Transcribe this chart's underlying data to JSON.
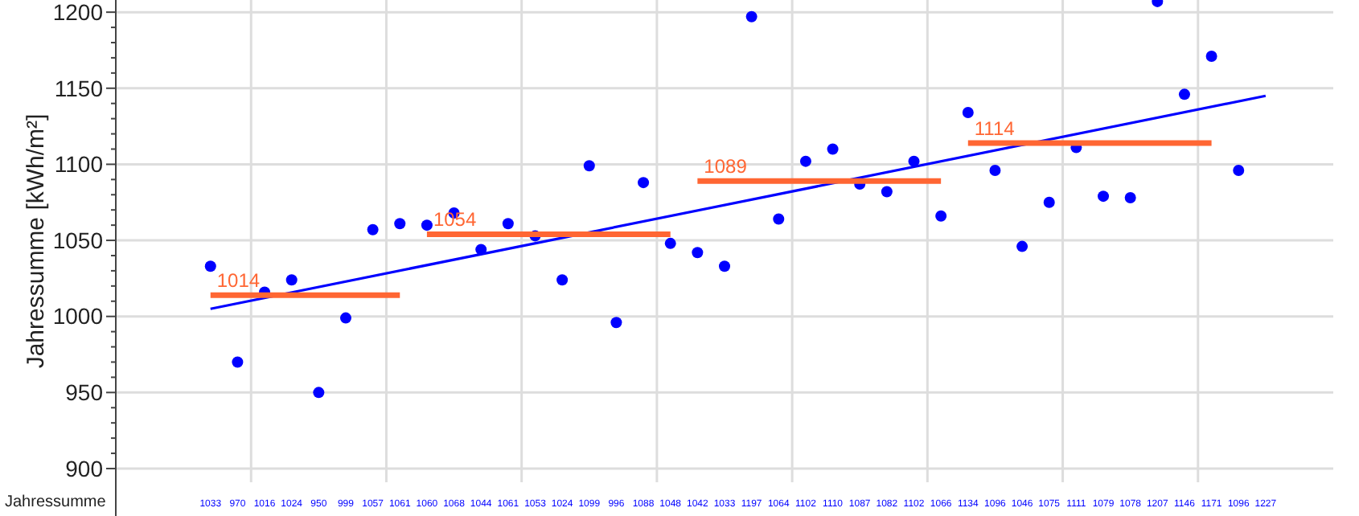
{
  "chart_data": {
    "type": "scatter",
    "ylabel": "Jahressumme [kWh/m²]",
    "categories": [
      null,
      null,
      null,
      null,
      null,
      null,
      null,
      null,
      null,
      null,
      null,
      null,
      null,
      null,
      null,
      null,
      null,
      null,
      null,
      null,
      null,
      null,
      null,
      null,
      null,
      null,
      null,
      null,
      null,
      null,
      null,
      null,
      null,
      null,
      null,
      null,
      null,
      null,
      null,
      null,
      null,
      null,
      null,
      null,
      null
    ],
    "series": [
      {
        "color": "#0000ff",
        "marker": "circle",
        "values": [
          null,
          null,
          null,
          1033,
          970,
          1016,
          1024,
          950,
          999,
          1057,
          1061,
          1060,
          1068,
          1044,
          1061,
          1053,
          1024,
          1099,
          996,
          1088,
          1048,
          1042,
          1033,
          1197,
          1064,
          1102,
          1110,
          1087,
          1082,
          1102,
          1066,
          1134,
          1096,
          1046,
          1075,
          1111,
          1079,
          1078,
          1207,
          1146,
          1171,
          1096,
          null,
          null,
          null
        ],
        "value_labels": [
          null,
          null,
          null,
          "1033",
          "970",
          "1016",
          "1024",
          "950",
          "999",
          "1057",
          "1061",
          "1060",
          "1068",
          "1044",
          "1061",
          "1053",
          "1024",
          "1099",
          "996",
          "1088",
          "1048",
          "1042",
          "1033",
          "1197",
          "1064",
          "1102",
          "1110",
          "1087",
          "1082",
          "1102",
          "1066",
          "1134",
          "1096",
          "1046",
          "1075",
          "1111",
          "1079",
          "1078",
          "1207",
          "1146",
          "1171",
          "1096",
          "1227",
          null,
          null
        ]
      },
      {
        "type": "line",
        "color": "#0000ff",
        "values": [
          null,
          null,
          null,
          1005,
          null,
          null,
          null,
          null,
          null,
          null,
          null,
          null,
          null,
          null,
          null,
          null,
          null,
          null,
          null,
          null,
          null,
          null,
          null,
          null,
          null,
          null,
          null,
          null,
          null,
          null,
          null,
          null,
          null,
          null,
          null,
          null,
          null,
          null,
          null,
          null,
          null,
          null,
          1145,
          null,
          null
        ]
      },
      {
        "type": "line",
        "color": "#ff6633",
        "values": [
          null,
          null,
          null,
          1014,
          null,
          null,
          null,
          null,
          null,
          null,
          1014,
          null,
          null,
          null,
          null,
          null,
          null,
          null,
          null,
          null,
          null,
          null,
          null,
          null,
          null,
          null,
          null,
          null,
          null,
          null,
          null,
          null,
          null,
          null,
          null,
          null,
          null,
          null,
          null,
          null,
          null,
          null,
          null,
          null,
          null
        ],
        "value_labels": [
          null,
          null,
          null,
          "1014",
          null,
          null,
          null,
          null,
          null,
          null,
          null,
          null,
          null,
          null,
          null,
          null,
          null,
          null,
          null,
          null,
          null,
          null,
          null,
          null,
          null,
          null,
          null,
          null,
          null,
          null,
          null,
          null,
          null,
          null,
          null,
          null,
          null,
          null,
          null,
          null,
          null,
          null,
          null,
          null,
          null
        ]
      },
      {
        "type": "line",
        "color": "#ff6633",
        "values": [
          null,
          null,
          null,
          null,
          null,
          null,
          null,
          null,
          null,
          null,
          null,
          1054,
          null,
          null,
          null,
          null,
          null,
          null,
          null,
          null,
          1054,
          null,
          null,
          null,
          null,
          null,
          null,
          null,
          null,
          null,
          null,
          null,
          null,
          null,
          null,
          null,
          null,
          null,
          null,
          null,
          null,
          null,
          null,
          null,
          null
        ],
        "value_labels": [
          null,
          null,
          null,
          null,
          null,
          null,
          null,
          null,
          null,
          null,
          null,
          "1054",
          null,
          null,
          null,
          null,
          null,
          null,
          null,
          null,
          null,
          null,
          null,
          null,
          null,
          null,
          null,
          null,
          null,
          null,
          null,
          null,
          null,
          null,
          null,
          null,
          null,
          null,
          null,
          null,
          null,
          null,
          null,
          null,
          null
        ]
      },
      {
        "type": "line",
        "color": "#ff6633",
        "values": [
          null,
          null,
          null,
          null,
          null,
          null,
          null,
          null,
          null,
          null,
          null,
          null,
          null,
          null,
          null,
          null,
          null,
          null,
          null,
          null,
          null,
          1089,
          null,
          null,
          null,
          null,
          null,
          null,
          null,
          null,
          1089,
          null,
          null,
          null,
          null,
          null,
          null,
          null,
          null,
          null,
          null,
          null,
          null,
          null,
          null
        ],
        "value_labels": [
          null,
          null,
          null,
          null,
          null,
          null,
          null,
          null,
          null,
          null,
          null,
          null,
          null,
          null,
          null,
          null,
          null,
          null,
          null,
          null,
          null,
          "1089",
          null,
          null,
          null,
          null,
          null,
          null,
          null,
          null,
          null,
          null,
          null,
          null,
          null,
          null,
          null,
          null,
          null,
          null,
          null,
          null,
          null,
          null,
          null
        ]
      },
      {
        "type": "line",
        "color": "#ff6633",
        "values": [
          null,
          null,
          null,
          null,
          null,
          null,
          null,
          null,
          null,
          null,
          null,
          null,
          null,
          null,
          null,
          null,
          null,
          null,
          null,
          null,
          null,
          null,
          null,
          null,
          null,
          null,
          null,
          null,
          null,
          null,
          null,
          1114,
          null,
          null,
          null,
          null,
          null,
          null,
          null,
          null,
          1114,
          null,
          null,
          null,
          null
        ],
        "value_labels": [
          null,
          null,
          null,
          null,
          null,
          null,
          null,
          null,
          null,
          null,
          null,
          null,
          null,
          null,
          null,
          null,
          null,
          null,
          null,
          null,
          null,
          null,
          null,
          null,
          null,
          null,
          null,
          null,
          null,
          null,
          null,
          "1114",
          null,
          null,
          null,
          null,
          null,
          null,
          null,
          null,
          null,
          null,
          null,
          null,
          null
        ]
      }
    ],
    "ylim": [
      891,
      1208
    ],
    "yticks": [
      900,
      {
        "value": 910,
        "label": null
      },
      {
        "value": 920,
        "label": null
      },
      {
        "value": 930,
        "label": null
      },
      {
        "value": 940,
        "label": null
      },
      950,
      {
        "value": 960,
        "label": null
      },
      {
        "value": 970,
        "label": null
      },
      {
        "value": 980,
        "label": null
      },
      {
        "value": 990,
        "label": null
      },
      1000,
      {
        "value": 1010,
        "label": null
      },
      {
        "value": 1020,
        "label": null
      },
      {
        "value": 1030,
        "label": null
      },
      {
        "value": 1040,
        "label": null
      },
      1050,
      {
        "value": 1060,
        "label": null
      },
      {
        "value": 1070,
        "label": null
      },
      {
        "value": 1080,
        "label": null
      },
      {
        "value": 1090,
        "label": null
      },
      1100,
      {
        "value": 1110,
        "label": null
      },
      {
        "value": 1120,
        "label": null
      },
      {
        "value": 1130,
        "label": null
      },
      {
        "value": 1140,
        "label": null
      },
      1150,
      {
        "value": 1160,
        "label": null
      },
      {
        "value": 1170,
        "label": null
      },
      {
        "value": 1180,
        "label": null
      },
      {
        "value": 1190,
        "label": null
      },
      1200
    ],
    "grid": true,
    "annotations": [
      "Jahressumme"
    ]
  }
}
